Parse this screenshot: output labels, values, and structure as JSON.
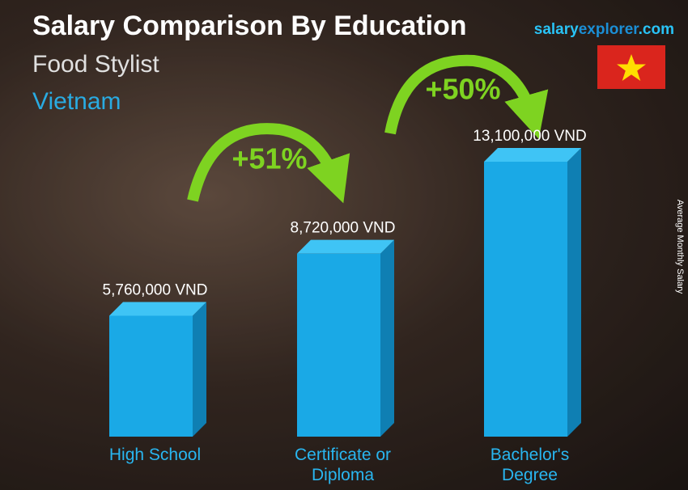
{
  "chart_data": {
    "type": "bar3d",
    "title": "Salary Comparison By Education",
    "subtitle": "Food Stylist",
    "country": "Vietnam",
    "site": [
      "salary",
      "explorer",
      ".com"
    ],
    "y_axis_label": "Average Monthly Salary",
    "categories": [
      "High School",
      "Certificate or Diploma",
      "Bachelor's Degree"
    ],
    "values": [
      5760000,
      8720000,
      13100000
    ],
    "value_labels": [
      "5,760,000 VND",
      "8,720,000 VND",
      "13,100,000 VND"
    ],
    "color": "#1aa9e6",
    "annotations": [
      "+51%",
      "+50%"
    ]
  }
}
